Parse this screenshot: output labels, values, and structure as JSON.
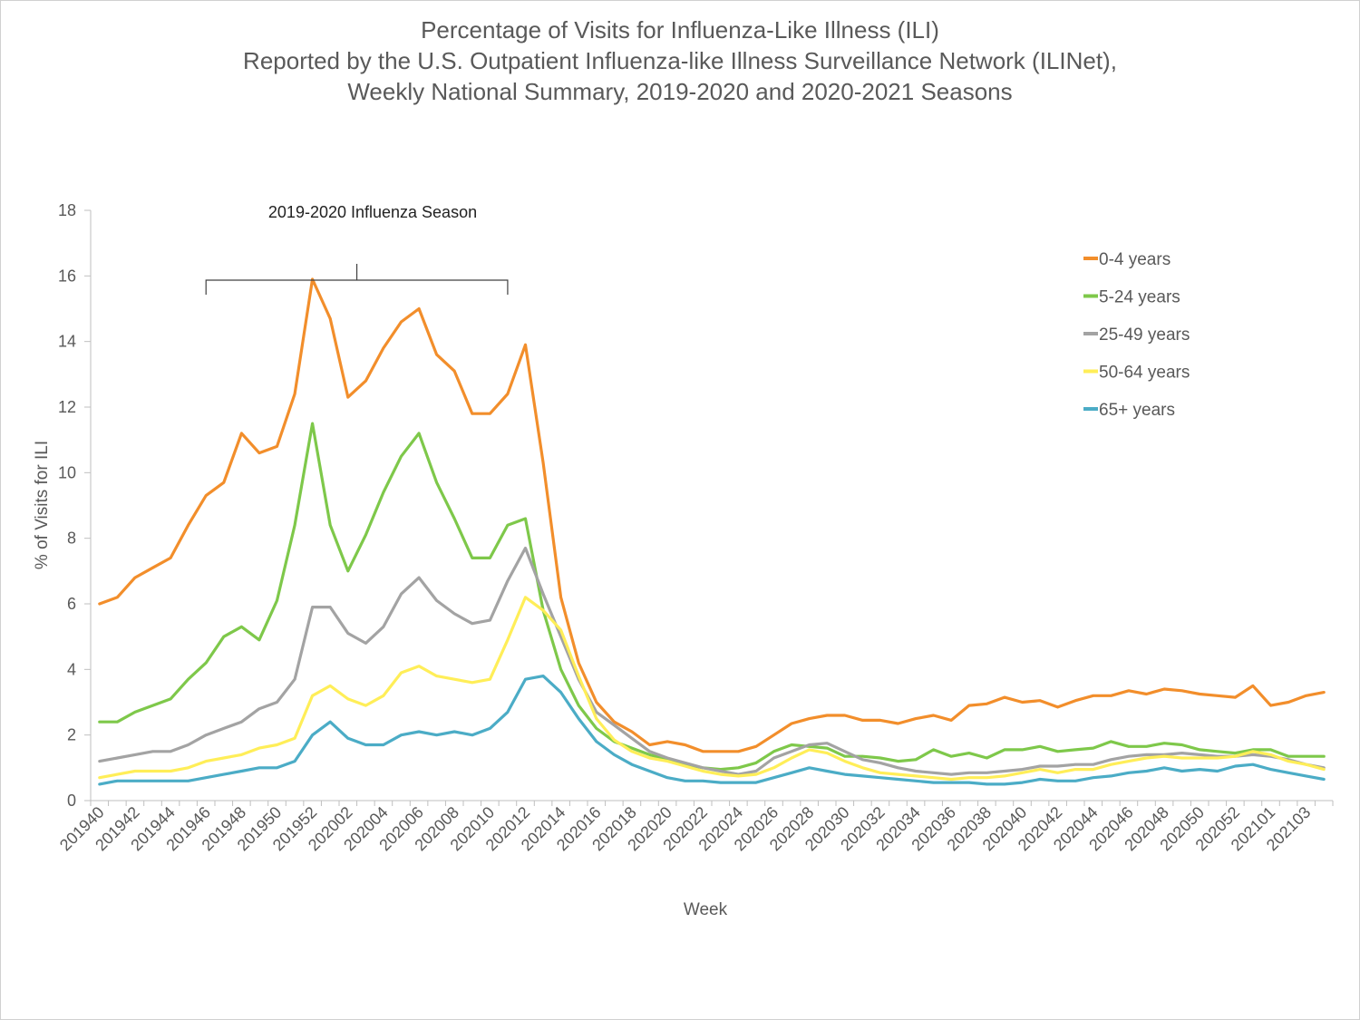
{
  "chart_data": {
    "type": "line",
    "title": [
      "Percentage of Visits for Influenza-Like Illness (ILI)",
      "Reported by the U.S. Outpatient Influenza-like Illness Surveillance Network (ILINet),",
      "Weekly National Summary, 2019-2020 and 2020-2021 Seasons"
    ],
    "xlabel": "Week",
    "ylabel": "% of Visits for ILI",
    "ylim": [
      0,
      18
    ],
    "yticks": [
      0,
      2,
      4,
      6,
      8,
      10,
      12,
      14,
      16,
      18
    ],
    "x": [
      "201940",
      "201941",
      "201942",
      "201943",
      "201944",
      "201945",
      "201946",
      "201947",
      "201948",
      "201949",
      "201950",
      "201951",
      "201952",
      "202001",
      "202002",
      "202003",
      "202004",
      "202005",
      "202006",
      "202007",
      "202008",
      "202009",
      "202010",
      "202011",
      "202012",
      "202013",
      "202014",
      "202015",
      "202016",
      "202017",
      "202018",
      "202019",
      "202020",
      "202021",
      "202022",
      "202023",
      "202024",
      "202025",
      "202026",
      "202027",
      "202028",
      "202029",
      "202030",
      "202031",
      "202032",
      "202033",
      "202034",
      "202035",
      "202036",
      "202037",
      "202038",
      "202039",
      "202040",
      "202041",
      "202042",
      "202043",
      "202044",
      "202045",
      "202046",
      "202047",
      "202048",
      "202049",
      "202050",
      "202051",
      "202052",
      "202053",
      "202101",
      "202102",
      "202103",
      "202104"
    ],
    "xtick_labels": [
      "201940",
      "201942",
      "201944",
      "201946",
      "201948",
      "201950",
      "201952",
      "202002",
      "202004",
      "202006",
      "202008",
      "202010",
      "202012",
      "202014",
      "202016",
      "202018",
      "202020",
      "202022",
      "202024",
      "202026",
      "202028",
      "202030",
      "202032",
      "202034",
      "202036",
      "202038",
      "202040",
      "202042",
      "202044",
      "202046",
      "202048",
      "202050",
      "202052",
      "202101",
      "202103"
    ],
    "series": [
      {
        "name": "0-4 years",
        "color": "#f28e2b",
        "values": [
          6.0,
          6.2,
          6.8,
          7.1,
          7.4,
          8.4,
          9.3,
          9.7,
          11.2,
          10.6,
          10.8,
          12.4,
          15.9,
          14.7,
          12.3,
          12.8,
          13.8,
          14.6,
          15.0,
          13.6,
          13.1,
          11.8,
          11.8,
          12.4,
          13.9,
          10.3,
          6.2,
          4.2,
          3.0,
          2.4,
          2.1,
          1.7,
          1.8,
          1.7,
          1.5,
          1.5,
          1.5,
          1.65,
          2.0,
          2.35,
          2.5,
          2.6,
          2.6,
          2.45,
          2.45,
          2.35,
          2.5,
          2.6,
          2.45,
          2.9,
          2.95,
          3.15,
          3.0,
          3.05,
          2.85,
          3.05,
          3.2,
          3.2,
          3.35,
          3.25,
          3.4,
          3.35,
          3.25,
          3.2,
          3.15,
          3.5,
          2.9,
          3.0,
          3.2,
          3.3
        ]
      },
      {
        "name": "5-24 years",
        "color": "#7ec84a",
        "values": [
          2.4,
          2.4,
          2.7,
          2.9,
          3.1,
          3.7,
          4.2,
          5.0,
          5.3,
          4.9,
          6.1,
          8.4,
          11.5,
          8.4,
          7.0,
          8.1,
          9.4,
          10.5,
          11.2,
          9.7,
          8.6,
          7.4,
          7.4,
          8.4,
          8.6,
          5.8,
          4.0,
          2.9,
          2.2,
          1.8,
          1.6,
          1.4,
          1.25,
          1.1,
          1.0,
          0.95,
          1.0,
          1.15,
          1.5,
          1.7,
          1.65,
          1.6,
          1.35,
          1.35,
          1.3,
          1.2,
          1.25,
          1.55,
          1.35,
          1.45,
          1.3,
          1.55,
          1.55,
          1.65,
          1.5,
          1.55,
          1.6,
          1.8,
          1.65,
          1.65,
          1.75,
          1.7,
          1.55,
          1.5,
          1.45,
          1.55,
          1.55,
          1.35,
          1.35,
          1.35
        ]
      },
      {
        "name": "25-49 years",
        "color": "#a3a3a3",
        "values": [
          1.2,
          1.3,
          1.4,
          1.5,
          1.5,
          1.7,
          2.0,
          2.2,
          2.4,
          2.8,
          3.0,
          3.7,
          5.9,
          5.9,
          5.1,
          4.8,
          5.3,
          6.3,
          6.8,
          6.1,
          5.7,
          5.4,
          5.5,
          6.7,
          7.7,
          6.3,
          5.0,
          3.7,
          2.7,
          2.3,
          1.9,
          1.5,
          1.3,
          1.15,
          1.0,
          0.9,
          0.8,
          0.9,
          1.3,
          1.5,
          1.7,
          1.75,
          1.5,
          1.25,
          1.15,
          1.0,
          0.9,
          0.85,
          0.8,
          0.85,
          0.85,
          0.9,
          0.95,
          1.05,
          1.05,
          1.1,
          1.1,
          1.25,
          1.35,
          1.4,
          1.4,
          1.45,
          1.4,
          1.35,
          1.35,
          1.4,
          1.35,
          1.25,
          1.1,
          1.0
        ]
      },
      {
        "name": "50-64 years",
        "color": "#ffee58",
        "values": [
          0.7,
          0.8,
          0.9,
          0.9,
          0.9,
          1.0,
          1.2,
          1.3,
          1.4,
          1.6,
          1.7,
          1.9,
          3.2,
          3.5,
          3.1,
          2.9,
          3.2,
          3.9,
          4.1,
          3.8,
          3.7,
          3.6,
          3.7,
          4.9,
          6.2,
          5.8,
          5.2,
          3.8,
          2.5,
          1.85,
          1.5,
          1.3,
          1.2,
          1.05,
          0.9,
          0.8,
          0.75,
          0.8,
          1.0,
          1.3,
          1.55,
          1.45,
          1.2,
          1.0,
          0.85,
          0.8,
          0.75,
          0.7,
          0.65,
          0.7,
          0.7,
          0.75,
          0.85,
          0.95,
          0.85,
          0.95,
          0.95,
          1.1,
          1.2,
          1.3,
          1.35,
          1.3,
          1.3,
          1.3,
          1.35,
          1.5,
          1.4,
          1.2,
          1.1,
          0.95
        ]
      },
      {
        "name": "65+ years",
        "color": "#4bacc6",
        "values": [
          0.5,
          0.6,
          0.6,
          0.6,
          0.6,
          0.6,
          0.7,
          0.8,
          0.9,
          1.0,
          1.0,
          1.2,
          2.0,
          2.4,
          1.9,
          1.7,
          1.7,
          2.0,
          2.1,
          2.0,
          2.1,
          2.0,
          2.2,
          2.7,
          3.7,
          3.8,
          3.3,
          2.5,
          1.8,
          1.4,
          1.1,
          0.9,
          0.7,
          0.6,
          0.6,
          0.55,
          0.55,
          0.55,
          0.7,
          0.85,
          1.0,
          0.9,
          0.8,
          0.75,
          0.7,
          0.65,
          0.6,
          0.55,
          0.55,
          0.55,
          0.5,
          0.5,
          0.55,
          0.65,
          0.6,
          0.6,
          0.7,
          0.75,
          0.85,
          0.9,
          1.0,
          0.9,
          0.95,
          0.9,
          1.05,
          1.1,
          0.95,
          0.85,
          0.75,
          0.65
        ]
      }
    ],
    "annotation": {
      "text": "2019-2020 Influenza Season",
      "from_week": "201946",
      "to_week": "202011"
    },
    "legend_position": "top-right",
    "grid": false
  }
}
